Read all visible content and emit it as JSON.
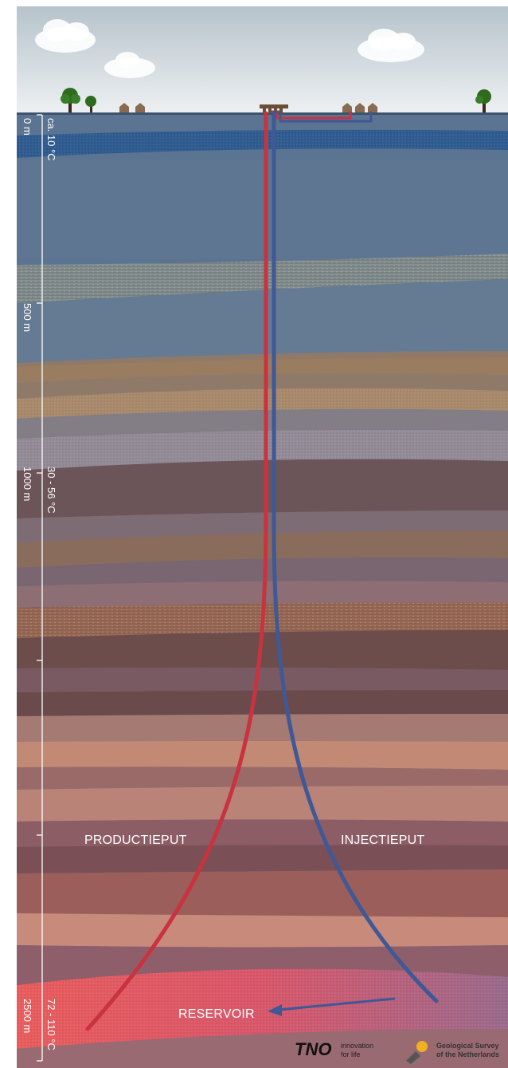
{
  "colors": {
    "sky_top": "#b8c4cc",
    "sky_bottom": "#e9edf0",
    "production_pipe": "#c9323f",
    "injection_pipe": "#3f5896",
    "ground_top": "#4f6a8a",
    "reservoir": "#e05a5a"
  },
  "depth_scale": {
    "top_label": "0 m",
    "mid1_label": "500 m",
    "mid2_label": "1000 m",
    "bottom_label": "2500 m"
  },
  "temperatures": {
    "surface": "ca. 10 °C",
    "mid": "30 - 56 °C",
    "reservoir": "72 - 110 °C"
  },
  "labels": {
    "production": "PRODUCTIEPUT",
    "injection": "INJECTIEPUT",
    "reservoir": "RESERVOIR"
  },
  "logos": {
    "tno_mark": "TNO",
    "tno_line1": "innovation",
    "tno_line2": "for life",
    "gsn_line1": "Geological Survey",
    "gsn_line2": "of the Netherlands"
  },
  "icons": {
    "tree": "tree-icon",
    "house": "house-icon",
    "cloud": "cloud-icon",
    "wellhead": "wellhead-icon"
  }
}
